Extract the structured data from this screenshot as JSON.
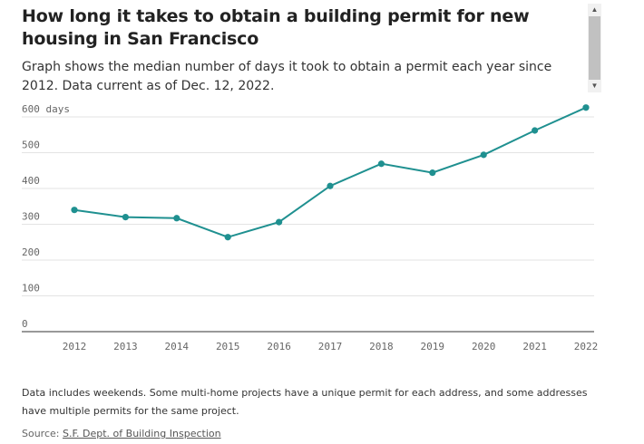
{
  "header": {
    "title": "How long it takes to obtain a building permit for new housing in San Francisco",
    "subtitle": "Graph shows the median number of days it took to obtain a permit each year since 2012. Data current as of Dec. 12, 2022."
  },
  "chart_data": {
    "type": "line",
    "x": [
      "2012",
      "2013",
      "2014",
      "2015",
      "2016",
      "2017",
      "2018",
      "2019",
      "2020",
      "2021",
      "2022"
    ],
    "series": [
      {
        "values": [
          340,
          320,
          317,
          264,
          306,
          407,
          469,
          444,
          494,
          562,
          626
        ]
      }
    ],
    "ylim": [
      0,
      600
    ],
    "yticks": [
      0,
      100,
      200,
      300,
      400,
      500,
      600
    ],
    "ytick_labels": [
      "0",
      "100",
      "200",
      "300",
      "400",
      "500",
      "600 days"
    ],
    "grid": true,
    "xlabel": "",
    "ylabel": "",
    "color": "#1f9090"
  },
  "footer": {
    "note": "Data includes weekends. Some multi-home projects have a unique permit for each address, and some addresses have multiple permits for the same project.",
    "source_prefix": "Source: ",
    "source_link": "S.F. Dept. of Building Inspection"
  }
}
